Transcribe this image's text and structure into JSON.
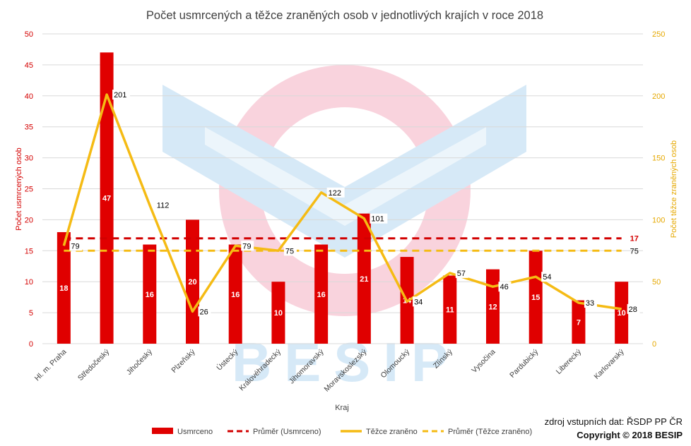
{
  "chart_data": {
    "type": "bar",
    "title": "Počet usmrcených a těžce zraněných osob v jednotlivých krajích v roce 2018",
    "xlabel": "Kraj",
    "ylabel": "Počet usmrcených osob",
    "y2label": "Počet těžce zraněných osob",
    "ylim": [
      0,
      50
    ],
    "y2lim": [
      0,
      250
    ],
    "yticks": [
      "0",
      "5",
      "10",
      "15",
      "20",
      "25",
      "30",
      "35",
      "40",
      "45",
      "50"
    ],
    "y2ticks": [
      "0",
      "50",
      "100",
      "150",
      "200",
      "250"
    ],
    "grid": true,
    "legend_position": "bottom",
    "categories": [
      "Hl. m. Praha",
      "Středočeský",
      "Jihočeský",
      "Plzeňský",
      "Ústecký",
      "Královéhradecký",
      "Jihomoravský",
      "Moravskoslezský",
      "Olomoucký",
      "Zlínský",
      "Vysočina",
      "Pardubický",
      "Liberecký",
      "Karlovarský"
    ],
    "series": [
      {
        "name": "Usmrceno",
        "type": "bar",
        "axis": "left",
        "color": "#e00000",
        "values": [
          18,
          47,
          16,
          20,
          16,
          10,
          16,
          21,
          14,
          11,
          12,
          15,
          7,
          10
        ]
      },
      {
        "name": "Průměr (Usmrceno)",
        "type": "line-dashed",
        "axis": "left",
        "color": "#d20000",
        "value": 17
      },
      {
        "name": "Těžce zraněno",
        "type": "line",
        "axis": "right",
        "color": "#f5bb14",
        "values": [
          79,
          201,
          112,
          26,
          79,
          75,
          122,
          101,
          34,
          57,
          46,
          54,
          33,
          28
        ]
      },
      {
        "name": "Průměr (Těžce zraněno)",
        "type": "line-dashed",
        "axis": "right",
        "color": "#f5bb14",
        "value": 75
      }
    ]
  },
  "footer": {
    "source": "zdroj vstupních dat: ŘSDP PP ČR",
    "copyright": "Copyright © 2018  BESIP"
  },
  "watermark": {
    "text": "BESIP"
  }
}
